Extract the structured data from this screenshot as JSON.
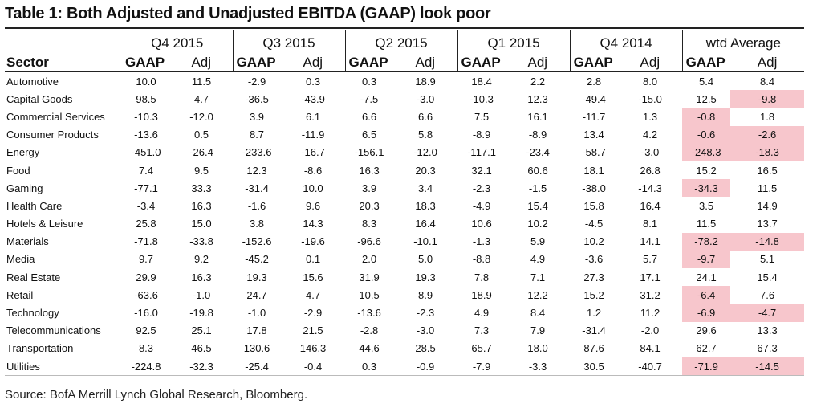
{
  "title": "Table 1: Both Adjusted and Unadjusted EBITDA (GAAP) look poor",
  "periods": [
    "Q4 2015",
    "Q3 2015",
    "Q2 2015",
    "Q1 2015",
    "Q4 2014",
    "wtd Average"
  ],
  "sector_header": "Sector",
  "gaap_header": "GAAP",
  "adj_header": "Adj",
  "rows": [
    {
      "sector": "Automotive",
      "values": [
        "10.0",
        "11.5",
        "-2.9",
        "0.3",
        "0.3",
        "18.9",
        "18.4",
        "2.2",
        "2.8",
        "8.0",
        "5.4",
        "8.4"
      ],
      "highlight": [
        false,
        false
      ]
    },
    {
      "sector": "Capital Goods",
      "values": [
        "98.5",
        "4.7",
        "-36.5",
        "-43.9",
        "-7.5",
        "-3.0",
        "-10.3",
        "12.3",
        "-49.4",
        "-15.0",
        "12.5",
        "-9.8"
      ],
      "highlight": [
        false,
        true
      ]
    },
    {
      "sector": "Commercial Services",
      "values": [
        "-10.3",
        "-12.0",
        "3.9",
        "6.1",
        "6.6",
        "6.6",
        "7.5",
        "16.1",
        "-11.7",
        "1.3",
        "-0.8",
        "1.8"
      ],
      "highlight": [
        true,
        false
      ]
    },
    {
      "sector": "Consumer Products",
      "values": [
        "-13.6",
        "0.5",
        "8.7",
        "-11.9",
        "6.5",
        "5.8",
        "-8.9",
        "-8.9",
        "13.4",
        "4.2",
        "-0.6",
        "-2.6"
      ],
      "highlight": [
        true,
        true
      ]
    },
    {
      "sector": "Energy",
      "values": [
        "-451.0",
        "-26.4",
        "-233.6",
        "-16.7",
        "-156.1",
        "-12.0",
        "-117.1",
        "-23.4",
        "-58.7",
        "-3.0",
        "-248.3",
        "-18.3"
      ],
      "highlight": [
        true,
        true
      ]
    },
    {
      "sector": "Food",
      "values": [
        "7.4",
        "9.5",
        "12.3",
        "-8.6",
        "16.3",
        "20.3",
        "32.1",
        "60.6",
        "18.1",
        "26.8",
        "15.2",
        "16.5"
      ],
      "highlight": [
        false,
        false
      ]
    },
    {
      "sector": "Gaming",
      "values": [
        "-77.1",
        "33.3",
        "-31.4",
        "10.0",
        "3.9",
        "3.4",
        "-2.3",
        "-1.5",
        "-38.0",
        "-14.3",
        "-34.3",
        "11.5"
      ],
      "highlight": [
        true,
        false
      ]
    },
    {
      "sector": "Health Care",
      "values": [
        "-3.4",
        "16.3",
        "-1.6",
        "9.6",
        "20.3",
        "18.3",
        "-4.9",
        "15.4",
        "15.8",
        "16.4",
        "3.5",
        "14.9"
      ],
      "highlight": [
        false,
        false
      ]
    },
    {
      "sector": "Hotels & Leisure",
      "values": [
        "25.8",
        "15.0",
        "3.8",
        "14.3",
        "8.3",
        "16.4",
        "10.6",
        "10.2",
        "-4.5",
        "8.1",
        "11.5",
        "13.7"
      ],
      "highlight": [
        false,
        false
      ]
    },
    {
      "sector": "Materials",
      "values": [
        "-71.8",
        "-33.8",
        "-152.6",
        "-19.6",
        "-96.6",
        "-10.1",
        "-1.3",
        "5.9",
        "10.2",
        "14.1",
        "-78.2",
        "-14.8"
      ],
      "highlight": [
        true,
        true
      ]
    },
    {
      "sector": "Media",
      "values": [
        "9.7",
        "9.2",
        "-45.2",
        "0.1",
        "2.0",
        "5.0",
        "-8.8",
        "4.9",
        "-3.6",
        "5.7",
        "-9.7",
        "5.1"
      ],
      "highlight": [
        true,
        false
      ]
    },
    {
      "sector": "Real Estate",
      "values": [
        "29.9",
        "16.3",
        "19.3",
        "15.6",
        "31.9",
        "19.3",
        "7.8",
        "7.1",
        "27.3",
        "17.1",
        "24.1",
        "15.4"
      ],
      "highlight": [
        false,
        false
      ]
    },
    {
      "sector": "Retail",
      "values": [
        "-63.6",
        "-1.0",
        "24.7",
        "4.7",
        "10.5",
        "8.9",
        "18.9",
        "12.2",
        "15.2",
        "31.2",
        "-6.4",
        "7.6"
      ],
      "highlight": [
        true,
        false
      ]
    },
    {
      "sector": "Technology",
      "values": [
        "-16.0",
        "-19.8",
        "-1.0",
        "-2.9",
        "-13.6",
        "-2.3",
        "4.9",
        "8.4",
        "1.2",
        "11.2",
        "-6.9",
        "-4.7"
      ],
      "highlight": [
        true,
        true
      ]
    },
    {
      "sector": "Telecommunications",
      "values": [
        "92.5",
        "25.1",
        "17.8",
        "21.5",
        "-2.8",
        "-3.0",
        "7.3",
        "7.9",
        "-31.4",
        "-2.0",
        "29.6",
        "13.3"
      ],
      "highlight": [
        false,
        false
      ]
    },
    {
      "sector": "Transportation",
      "values": [
        "8.3",
        "46.5",
        "130.6",
        "146.3",
        "44.6",
        "28.5",
        "65.7",
        "18.0",
        "87.6",
        "84.1",
        "62.7",
        "67.3"
      ],
      "highlight": [
        false,
        false
      ]
    },
    {
      "sector": "Utilities",
      "values": [
        "-224.8",
        "-32.3",
        "-25.4",
        "-0.4",
        "0.3",
        "-0.9",
        "-7.9",
        "-3.3",
        "30.5",
        "-40.7",
        "-71.9",
        "-14.5"
      ],
      "highlight": [
        true,
        true
      ]
    }
  ],
  "source": "Source: BofA Merrill Lynch Global Research, Bloomberg.",
  "colors": {
    "highlight": "#f7c6cc"
  }
}
